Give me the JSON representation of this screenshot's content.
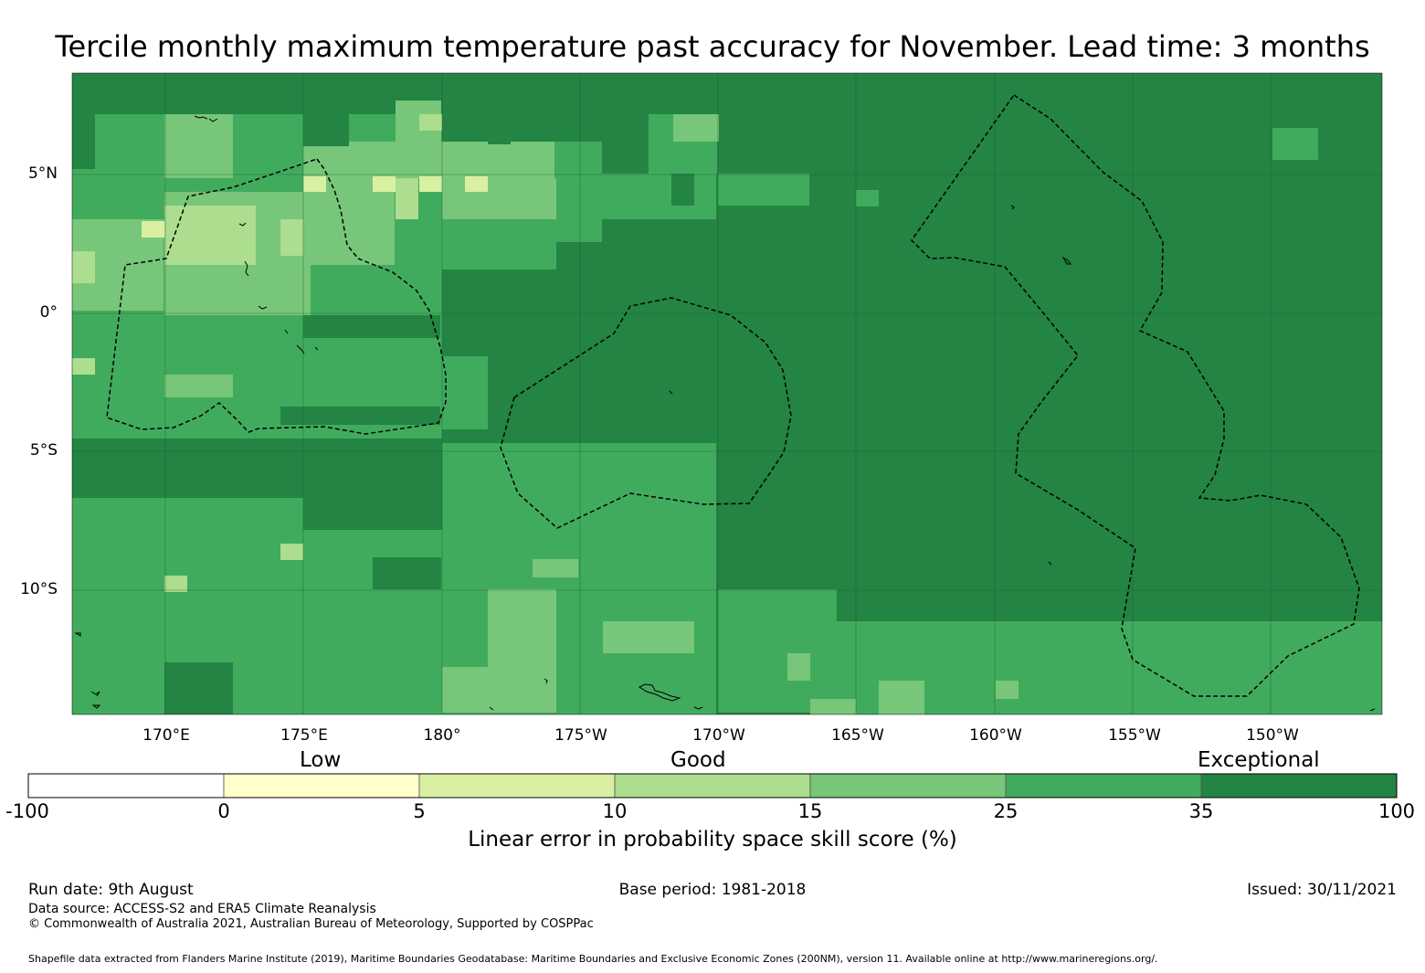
{
  "title": "Tercile monthly maximum temperature past accuracy for November. Lead time: 3 months",
  "map": {
    "latitude_labels": [
      "5°N",
      "0°",
      "5°S",
      "10°S"
    ],
    "longitude_labels": [
      "170°E",
      "175°E",
      "180°",
      "175°W",
      "170°W",
      "165°W",
      "160°W",
      "155°W",
      "150°W"
    ],
    "colors": {
      "exceptional": "#238443",
      "bin_25_35": "#41ab5d",
      "bin_15_25": "#78c679",
      "bin_10_15": "#addd8e",
      "bin_5_10": "#d9f0a3",
      "bin_0_5": "#ffffcc",
      "gridline": "#1a5e2e",
      "boundary": "#000000"
    }
  },
  "colorbar": {
    "category_labels": {
      "low": "Low",
      "good": "Good",
      "exceptional": "Exceptional"
    },
    "ticks": [
      "-100",
      "0",
      "5",
      "10",
      "15",
      "25",
      "35",
      "100"
    ],
    "bin_colors": [
      "#ffffff",
      "#ffffcc",
      "#d9f0a3",
      "#addd8e",
      "#78c679",
      "#41ab5d",
      "#238443"
    ],
    "title": "Linear error in probability space skill score (%)"
  },
  "footer": {
    "run_date": "Run date: 9th August",
    "base_period": "Base period: 1981-2018",
    "issued": "Issued: 30/11/2021",
    "data_source": "Data source: ACCESS-S2 and ERA5 Climate Reanalysis",
    "copyright": "© Commonwealth of Australia 2021, Australian Bureau of Meteorology, Supported by COSPPac",
    "shapefile": "Shapefile data extracted from Flanders Marine Institute (2019), Maritime Boundaries Geodatabase: Maritime Boundaries and Exclusive Economic Zones (200NM), version 11. Available online at http://www.marineregions.org/."
  }
}
